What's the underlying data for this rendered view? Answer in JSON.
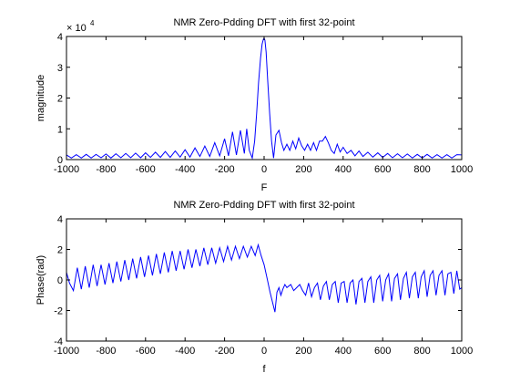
{
  "chart_data": [
    {
      "type": "line",
      "title": "NMR Zero-Pdding DFT with first 32-point",
      "xlabel": "F",
      "ylabel": "magnitude",
      "xlim": [
        -1000,
        1000
      ],
      "ylim": [
        0,
        4
      ],
      "y_multiplier_label": "× 10",
      "y_multiplier_exp": "4",
      "xticks": [
        -1000,
        -800,
        -600,
        -400,
        -200,
        0,
        200,
        400,
        600,
        800,
        1000
      ],
      "yticks": [
        0,
        1,
        2,
        3,
        4
      ],
      "line_color": "#0000ff",
      "series": [
        {
          "x": [
            -1000,
            -975,
            -950,
            -925,
            -900,
            -875,
            -850,
            -825,
            -800,
            -775,
            -750,
            -725,
            -700,
            -675,
            -650,
            -625,
            -600,
            -575,
            -550,
            -525,
            -500,
            -475,
            -450,
            -425,
            -400,
            -375,
            -350,
            -325,
            -300,
            -275,
            -250,
            -225,
            -200,
            -180,
            -160,
            -140,
            -120,
            -100,
            -88,
            -75,
            -60,
            -48,
            -38,
            -28,
            -18,
            -10,
            -4,
            0,
            4,
            10,
            18,
            28,
            38,
            48,
            60,
            75,
            88,
            100,
            115,
            130,
            145,
            160,
            175,
            190,
            205,
            220,
            235,
            250,
            265,
            280,
            295,
            310,
            325,
            340,
            355,
            370,
            385,
            400,
            420,
            440,
            460,
            480,
            500,
            525,
            550,
            575,
            600,
            625,
            650,
            675,
            700,
            725,
            750,
            775,
            800,
            825,
            850,
            875,
            900,
            925,
            950,
            975,
            1000
          ],
          "y": [
            0.15,
            0.05,
            0.16,
            0.05,
            0.17,
            0.05,
            0.17,
            0.06,
            0.18,
            0.05,
            0.19,
            0.06,
            0.2,
            0.06,
            0.21,
            0.06,
            0.22,
            0.07,
            0.24,
            0.07,
            0.26,
            0.07,
            0.28,
            0.08,
            0.32,
            0.08,
            0.38,
            0.1,
            0.44,
            0.1,
            0.55,
            0.12,
            0.68,
            0.12,
            0.9,
            0.15,
            0.95,
            0.2,
            1.0,
            0.3,
            0.05,
            0.6,
            1.5,
            2.5,
            3.3,
            3.75,
            3.9,
            3.95,
            3.88,
            3.5,
            2.6,
            1.5,
            0.6,
            0.05,
            0.8,
            0.95,
            0.55,
            0.3,
            0.5,
            0.3,
            0.6,
            0.35,
            0.7,
            0.45,
            0.3,
            0.5,
            0.3,
            0.55,
            0.3,
            0.6,
            0.6,
            0.75,
            0.55,
            0.3,
            0.2,
            0.5,
            0.25,
            0.4,
            0.2,
            0.3,
            0.12,
            0.28,
            0.1,
            0.24,
            0.08,
            0.22,
            0.07,
            0.2,
            0.06,
            0.19,
            0.06,
            0.18,
            0.05,
            0.17,
            0.05,
            0.17,
            0.05,
            0.16,
            0.05,
            0.16,
            0.05,
            0.16,
            0.15
          ]
        }
      ]
    },
    {
      "type": "line",
      "title": "NMR Zero-Pdding DFT with first 32-point",
      "xlabel": "f",
      "ylabel": "Phase(rad)",
      "xlim": [
        -1000,
        1000
      ],
      "ylim": [
        -4,
        4
      ],
      "xticks": [
        -1000,
        -800,
        -600,
        -400,
        -200,
        0,
        200,
        400,
        600,
        800,
        1000
      ],
      "yticks": [
        -4,
        -2,
        0,
        2,
        4
      ],
      "line_color": "#0000ff",
      "series": [
        {
          "x": [
            -1000,
            -985,
            -965,
            -945,
            -925,
            -905,
            -885,
            -865,
            -845,
            -825,
            -805,
            -785,
            -765,
            -745,
            -725,
            -705,
            -685,
            -665,
            -645,
            -625,
            -605,
            -585,
            -565,
            -545,
            -525,
            -505,
            -485,
            -465,
            -445,
            -425,
            -405,
            -385,
            -365,
            -345,
            -325,
            -305,
            -285,
            -265,
            -245,
            -225,
            -205,
            -185,
            -165,
            -145,
            -125,
            -105,
            -85,
            -65,
            -45,
            -30,
            -15,
            0,
            15,
            30,
            45,
            55,
            65,
            75,
            85,
            95,
            105,
            115,
            125,
            135,
            150,
            165,
            180,
            195,
            210,
            225,
            240,
            255,
            270,
            285,
            300,
            315,
            330,
            345,
            360,
            375,
            390,
            405,
            420,
            435,
            450,
            465,
            480,
            495,
            510,
            525,
            540,
            555,
            570,
            585,
            600,
            615,
            630,
            645,
            660,
            675,
            690,
            705,
            720,
            735,
            750,
            765,
            780,
            795,
            810,
            825,
            840,
            855,
            870,
            885,
            900,
            915,
            930,
            945,
            960,
            975,
            990,
            1000
          ],
          "y": [
            0.5,
            -0.2,
            -0.7,
            0.8,
            -0.6,
            0.9,
            -0.5,
            1.0,
            -0.4,
            1.0,
            -0.3,
            1.1,
            -0.2,
            1.2,
            -0.1,
            1.3,
            0.0,
            1.4,
            0.1,
            1.5,
            0.2,
            1.6,
            0.3,
            1.7,
            0.4,
            1.8,
            0.5,
            1.9,
            0.6,
            1.9,
            0.7,
            2.0,
            0.8,
            2.0,
            0.9,
            2.1,
            1.0,
            2.1,
            1.1,
            2.1,
            1.2,
            2.2,
            1.3,
            2.2,
            1.4,
            2.2,
            1.5,
            2.2,
            1.6,
            2.3,
            1.6,
            1.0,
            0.1,
            -0.8,
            -1.6,
            -2.1,
            -0.8,
            -0.5,
            -1.0,
            -0.6,
            -0.3,
            -0.5,
            -0.4,
            -0.3,
            -0.7,
            -0.5,
            -0.3,
            -0.7,
            -1.0,
            -0.2,
            -1.1,
            -0.5,
            -0.2,
            -1.3,
            -0.4,
            -0.1,
            -1.3,
            -0.3,
            -0.1,
            -1.5,
            -0.2,
            -0.1,
            -1.5,
            -0.2,
            0.0,
            -1.6,
            -0.1,
            0.1,
            -1.5,
            -0.1,
            0.2,
            -1.5,
            0.0,
            0.3,
            -1.4,
            0.0,
            0.4,
            -1.4,
            0.1,
            0.4,
            -1.3,
            0.1,
            0.5,
            -1.2,
            0.2,
            0.5,
            -1.2,
            0.2,
            0.6,
            -1.1,
            0.3,
            0.6,
            -1.0,
            0.3,
            0.6,
            -1.0,
            0.4,
            0.5,
            -0.9,
            0.6,
            -0.6,
            -0.5
          ]
        }
      ]
    }
  ]
}
